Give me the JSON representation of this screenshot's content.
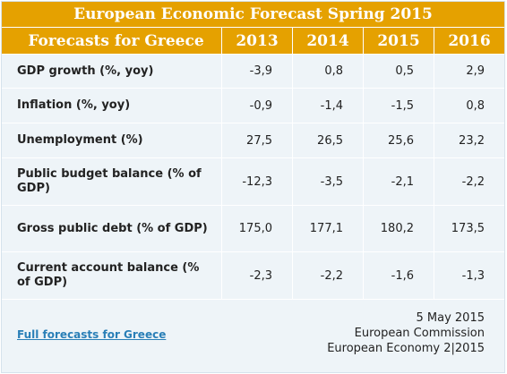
{
  "title": "European Economic Forecast Spring 2015",
  "header": {
    "label": "Forecasts for Greece",
    "years": [
      "2013",
      "2014",
      "2015",
      "2016"
    ]
  },
  "rows": [
    {
      "label": "GDP growth (%, yoy)",
      "values": [
        "-3,9",
        "0,8",
        "0,5",
        "2,9"
      ]
    },
    {
      "label": "Inflation (%, yoy)",
      "values": [
        "-0,9",
        "-1,4",
        "-1,5",
        "0,8"
      ]
    },
    {
      "label": "Unemployment (%)",
      "values": [
        "27,5",
        "26,5",
        "25,6",
        "23,2"
      ]
    },
    {
      "label": "Public budget balance (% of GDP)",
      "values": [
        "-12,3",
        "-3,5",
        "-2,1",
        "-2,2"
      ]
    },
    {
      "label": "Gross public debt (% of GDP)",
      "values": [
        "175,0",
        "177,1",
        "180,2",
        "173,5"
      ]
    },
    {
      "label": "Current account balance (% of GDP)",
      "values": [
        "-2,3",
        "-2,2",
        "-1,6",
        "-1,3"
      ]
    }
  ],
  "footer": {
    "link_text": "Full forecasts for Greece",
    "date": "5 May 2015",
    "publisher": "European Commission",
    "series": "European Economy 2|2015"
  },
  "colors": {
    "header_bg": "#e5a100",
    "body_bg": "#eef4f8",
    "link": "#2a7fb7"
  }
}
